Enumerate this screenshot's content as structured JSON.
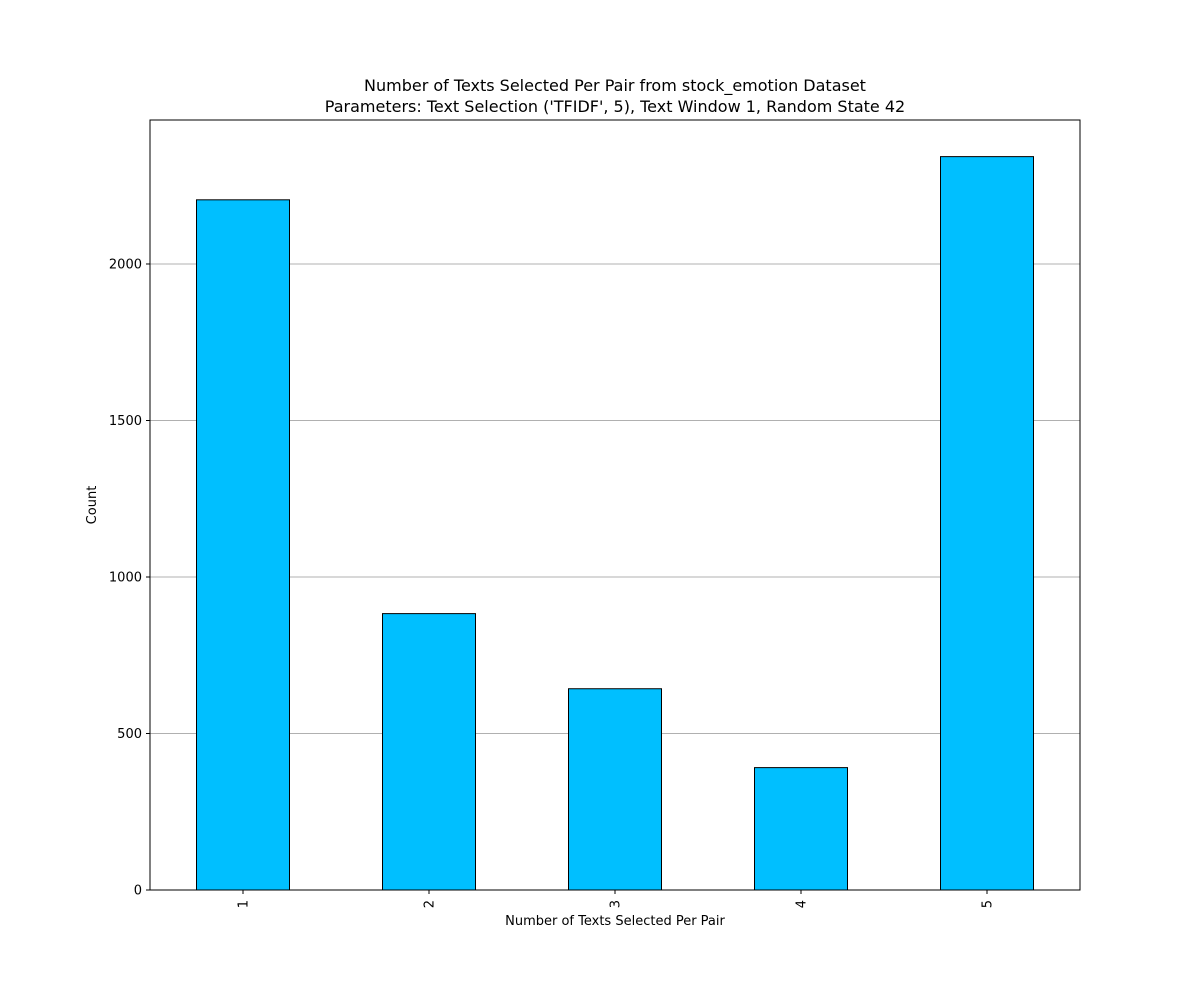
{
  "chart_data": {
    "type": "bar",
    "title": "Number of Texts Selected Per Pair from stock_emotion Dataset",
    "subtitle": "Parameters: Text Selection ('TFIDF', 5), Text Window 1, Random State 42",
    "xlabel": "Number of Texts Selected Per Pair",
    "ylabel": "Count",
    "categories": [
      "1",
      "2",
      "3",
      "4",
      "5"
    ],
    "values": [
      2205,
      883,
      643,
      391,
      2343
    ],
    "ylim": [
      0,
      2460
    ],
    "yticks": [
      0,
      500,
      1000,
      1500,
      2000
    ],
    "grid": "y",
    "bar_color": "#00bfff",
    "edge_color": "#000000",
    "grid_color": "#b0b0b0",
    "x_tick_rotation": "vertical"
  }
}
